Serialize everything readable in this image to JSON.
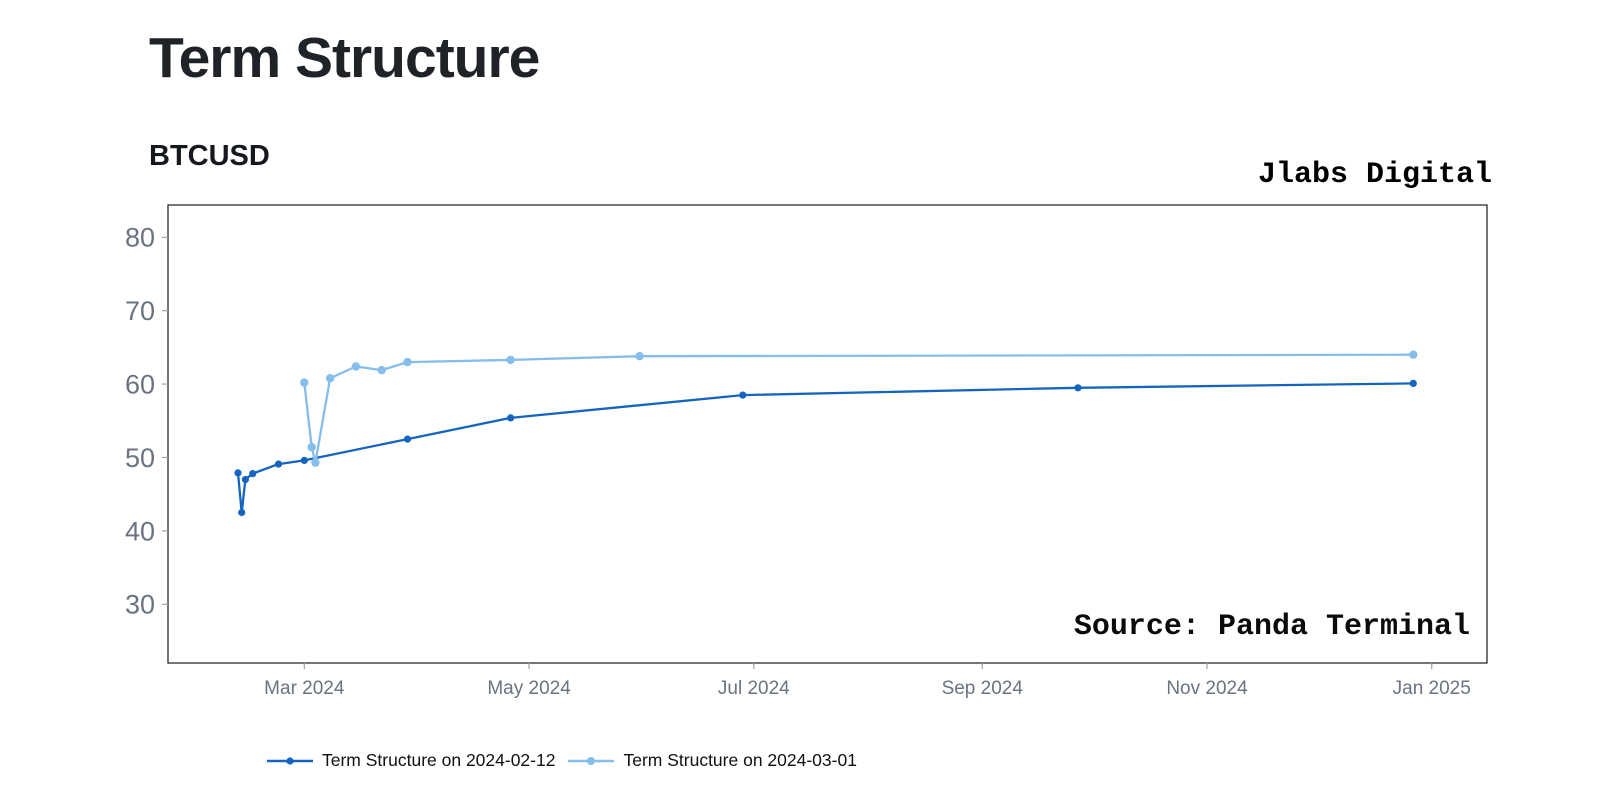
{
  "header": {
    "title": "Term Structure",
    "subtitle": "BTCUSD",
    "watermark": "Jlabs Digital"
  },
  "source_note": "Source: Panda Terminal",
  "colors": {
    "series_dark_blue": "#1565c0",
    "series_light_blue": "#85bdeb",
    "axis_text": "#6b7280",
    "title_text": "#1f2328",
    "plot_border": "#2b2b2b",
    "tick_mark": "#9aa0ab",
    "background": "#ffffff",
    "legend_text": "#111111"
  },
  "chart_data": {
    "type": "line",
    "title": "Term Structure",
    "subtitle": "BTCUSD",
    "xlabel": "",
    "ylabel": "",
    "grid": false,
    "legend_position": "bottom-left",
    "x_range": [
      "2024-01-24",
      "2025-01-16"
    ],
    "y_range": [
      22.0,
      84.4
    ],
    "y_ticks": [
      30,
      40,
      50,
      60,
      70,
      80
    ],
    "x_ticks": [
      {
        "date": "2024-03-01",
        "label": "Mar 2024"
      },
      {
        "date": "2024-05-01",
        "label": "May 2024"
      },
      {
        "date": "2024-07-01",
        "label": "Jul 2024"
      },
      {
        "date": "2024-09-01",
        "label": "Sep 2024"
      },
      {
        "date": "2024-11-01",
        "label": "Nov 2024"
      },
      {
        "date": "2025-01-01",
        "label": "Jan 2025"
      }
    ],
    "series": [
      {
        "name": "Term Structure on 2024-02-12",
        "color": "#1565c0",
        "line_width": 2.3,
        "marker_radius": 3.6,
        "points": [
          {
            "date": "2024-02-12",
            "value": 47.9
          },
          {
            "date": "2024-02-13",
            "value": 42.5
          },
          {
            "date": "2024-02-14",
            "value": 47.0
          },
          {
            "date": "2024-02-16",
            "value": 47.8
          },
          {
            "date": "2024-02-23",
            "value": 49.1
          },
          {
            "date": "2024-03-01",
            "value": 49.6
          },
          {
            "date": "2024-03-29",
            "value": 52.5
          },
          {
            "date": "2024-04-26",
            "value": 55.4
          },
          {
            "date": "2024-06-28",
            "value": 58.5
          },
          {
            "date": "2024-09-27",
            "value": 59.5
          },
          {
            "date": "2024-12-27",
            "value": 60.1
          }
        ]
      },
      {
        "name": "Term Structure on 2024-03-01",
        "color": "#85bdeb",
        "line_width": 2.3,
        "marker_radius": 4.2,
        "points": [
          {
            "date": "2024-03-01",
            "value": 60.2
          },
          {
            "date": "2024-03-03",
            "value": 51.4
          },
          {
            "date": "2024-03-04",
            "value": 49.3
          },
          {
            "date": "2024-03-08",
            "value": 60.8
          },
          {
            "date": "2024-03-15",
            "value": 62.4
          },
          {
            "date": "2024-03-22",
            "value": 61.9
          },
          {
            "date": "2024-03-29",
            "value": 63.0
          },
          {
            "date": "2024-04-26",
            "value": 63.3
          },
          {
            "date": "2024-05-31",
            "value": 63.8
          },
          {
            "date": "2024-12-27",
            "value": 64.0
          }
        ]
      }
    ]
  }
}
